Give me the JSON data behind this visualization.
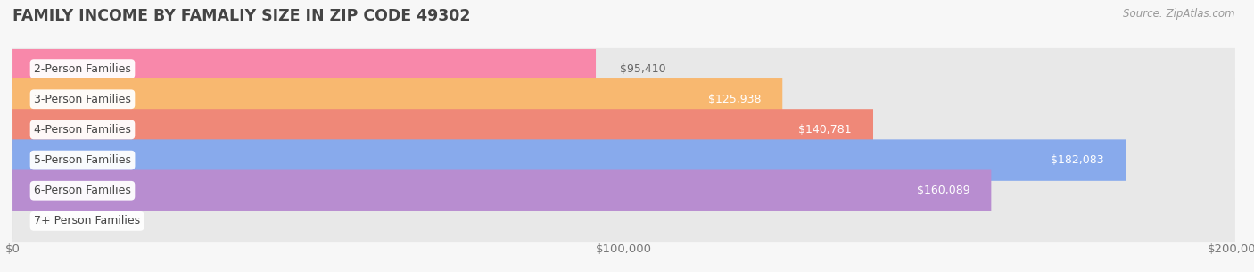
{
  "title": "FAMILY INCOME BY FAMALIY SIZE IN ZIP CODE 49302",
  "source": "Source: ZipAtlas.com",
  "categories": [
    "2-Person Families",
    "3-Person Families",
    "4-Person Families",
    "5-Person Families",
    "6-Person Families",
    "7+ Person Families"
  ],
  "values": [
    95410,
    125938,
    140781,
    182083,
    160089,
    0
  ],
  "bar_colors": [
    "#F888AA",
    "#F8B870",
    "#EF8878",
    "#88AAEC",
    "#B88DD0",
    "#72C8CE"
  ],
  "value_label_colors": [
    "#888888",
    "#ffffff",
    "#ffffff",
    "#ffffff",
    "#ffffff",
    "#555555"
  ],
  "value_label_outside": [
    true,
    false,
    false,
    false,
    false,
    true
  ],
  "xlim": [
    0,
    200000
  ],
  "xticks": [
    0,
    100000,
    200000
  ],
  "xtick_labels": [
    "$0",
    "$100,000",
    "$200,000"
  ],
  "title_fontsize": 12.5,
  "axis_fontsize": 9.5,
  "cat_label_fontsize": 9,
  "val_label_fontsize": 9,
  "background_color": "#f7f7f7",
  "bar_bg_color": "#e8e8e8",
  "bar_row_bg_color": "#efefef"
}
